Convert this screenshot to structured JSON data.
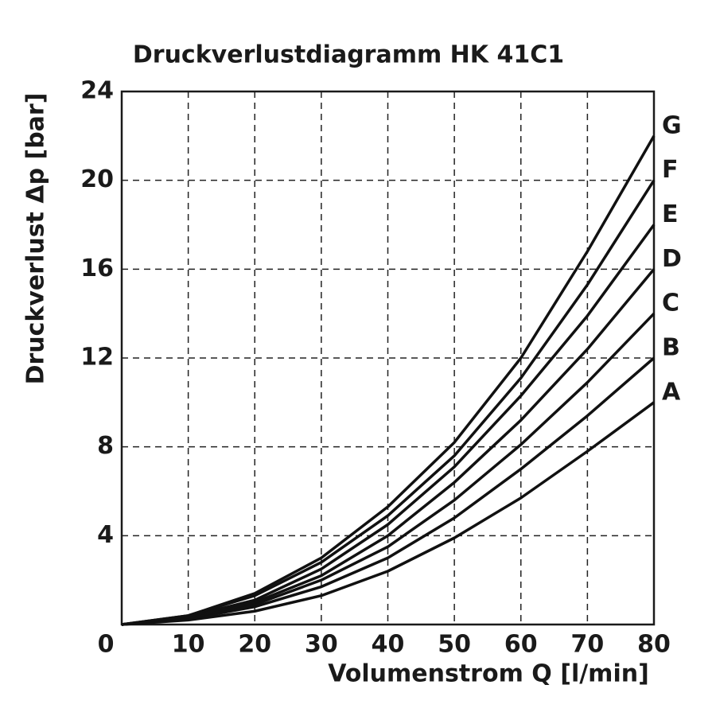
{
  "chart_data": {
    "type": "line",
    "title": "Druckverlustdiagramm HK 41C1",
    "x_label": "Volumenstrom Q [l/min]",
    "y_label": "Druckverlust Δp [bar]",
    "x": [
      0,
      10,
      20,
      30,
      40,
      50,
      60,
      70,
      80
    ],
    "series": [
      {
        "name": "A",
        "color": "#111111",
        "values": [
          0,
          0.2,
          0.6,
          1.3,
          2.4,
          3.9,
          5.7,
          7.8,
          10
        ]
      },
      {
        "name": "B",
        "color": "#111111",
        "values": [
          0,
          0.25,
          0.8,
          1.7,
          3.0,
          4.8,
          7.0,
          9.4,
          12
        ]
      },
      {
        "name": "C",
        "color": "#111111",
        "values": [
          0,
          0.3,
          0.9,
          2.0,
          3.5,
          5.6,
          8.1,
          10.9,
          14
        ]
      },
      {
        "name": "D",
        "color": "#111111",
        "values": [
          0,
          0.3,
          1.0,
          2.2,
          4.0,
          6.4,
          9.2,
          12.4,
          16
        ]
      },
      {
        "name": "E",
        "color": "#111111",
        "values": [
          0,
          0.35,
          1.1,
          2.5,
          4.5,
          7.1,
          10.3,
          13.9,
          18
        ]
      },
      {
        "name": "F",
        "color": "#111111",
        "values": [
          0,
          0.4,
          1.3,
          2.8,
          4.9,
          7.6,
          11.1,
          15.3,
          20
        ]
      },
      {
        "name": "G",
        "color": "#111111",
        "values": [
          0,
          0.4,
          1.4,
          3.0,
          5.3,
          8.2,
          12.0,
          16.8,
          22
        ]
      }
    ],
    "xlim": [
      0,
      80
    ],
    "xticks": [
      0,
      10,
      20,
      30,
      40,
      50,
      60,
      70,
      80
    ],
    "ylim": [
      0,
      24
    ],
    "yticks": [
      4,
      8,
      12,
      16,
      20,
      24
    ],
    "grid": true
  }
}
